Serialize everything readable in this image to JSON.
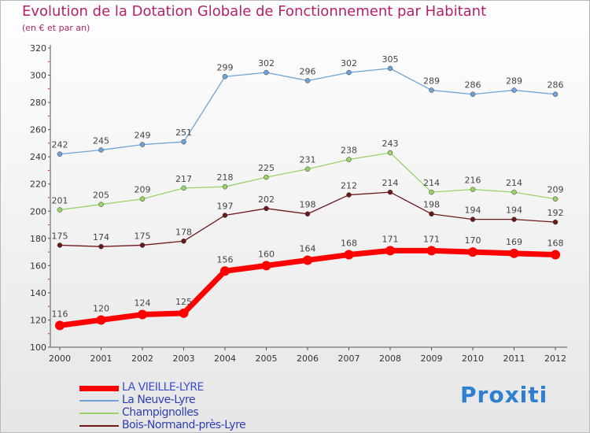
{
  "header": {
    "title": "Evolution de la Dotation Globale de Fonctionnement par Habitant",
    "subtitle": "(en € et par an)"
  },
  "brand": {
    "text": "Proxiti"
  },
  "chart_data": {
    "type": "line",
    "title": "Evolution de la Dotation Globale de Fonctionnement par Habitant",
    "subtitle": "(en € et par an)",
    "xlabel": "",
    "ylabel": "",
    "x": [
      "2000",
      "2001",
      "2002",
      "2003",
      "2004",
      "2005",
      "2006",
      "2007",
      "2008",
      "2009",
      "2010",
      "2011",
      "2012"
    ],
    "ylim": [
      100,
      320
    ],
    "yticks": [
      100,
      120,
      140,
      160,
      180,
      200,
      220,
      240,
      260,
      280,
      300,
      320
    ],
    "grid": false,
    "legend_position": "bottom-left",
    "series": [
      {
        "name": "LA VIEILLE-LYRE",
        "color": "#ff0000",
        "values": [
          116,
          120,
          124,
          125,
          156,
          160,
          164,
          168,
          171,
          171,
          170,
          169,
          168
        ]
      },
      {
        "name": "La Neuve-Lyre",
        "color": "#6fa3d6",
        "values": [
          242,
          245,
          249,
          251,
          299,
          302,
          296,
          302,
          305,
          289,
          286,
          289,
          286
        ]
      },
      {
        "name": "Champignolles",
        "color": "#9ad26a",
        "values": [
          201,
          205,
          209,
          217,
          218,
          225,
          231,
          238,
          243,
          214,
          216,
          214,
          209
        ]
      },
      {
        "name": "Bois-Normand-près-Lyre",
        "color": "#6b1a1a",
        "values": [
          175,
          174,
          175,
          178,
          197,
          202,
          198,
          212,
          214,
          198,
          194,
          194,
          192
        ]
      }
    ]
  }
}
